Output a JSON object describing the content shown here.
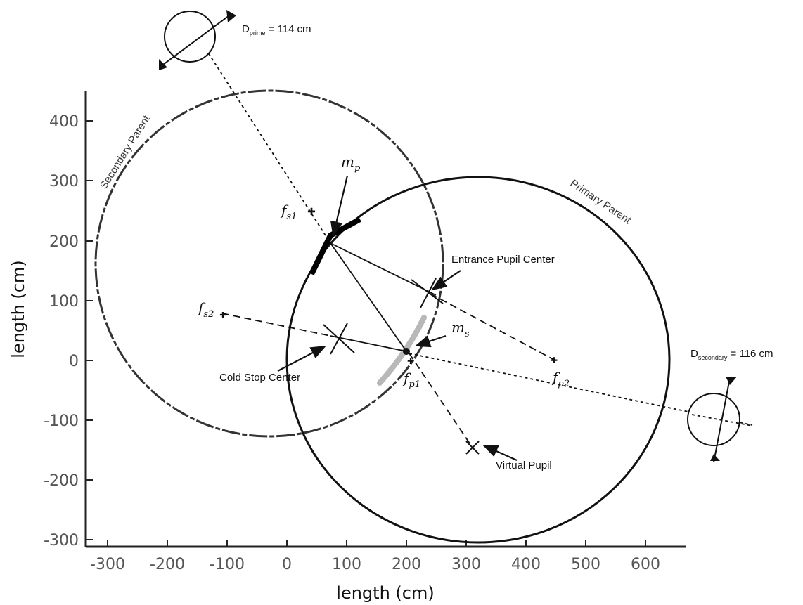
{
  "axes": {
    "xlabel": "length (cm)",
    "ylabel": "length (cm)",
    "x_ticks": [
      "-300",
      "-200",
      "-100",
      "0",
      "100",
      "200",
      "300",
      "400",
      "500",
      "600"
    ],
    "y_ticks": [
      "400",
      "300",
      "200",
      "100",
      "0",
      "-100",
      "-200",
      "-300"
    ]
  },
  "labels": {
    "secondary_parent": "Secondary Parent",
    "primary_parent": "Primary Parent",
    "entrance_pupil": "Entrance Pupil Center",
    "cold_stop": "Cold Stop Center",
    "virtual_pupil": "Virtual Pupil"
  },
  "math": {
    "f": "f",
    "m": "m",
    "fs1_sub": "s1",
    "fs2_sub": "s2",
    "fp1_sub": "p1",
    "fp2_sub": "p2",
    "mp_sub": "p",
    "ms_sub": "s"
  },
  "dimensions": {
    "prime_main": "D",
    "prime_sub": "prime",
    "prime_value": " = 114 cm",
    "secondary_main": "D",
    "secondary_sub": "secondary",
    "secondary_value": " = 116 cm"
  }
}
